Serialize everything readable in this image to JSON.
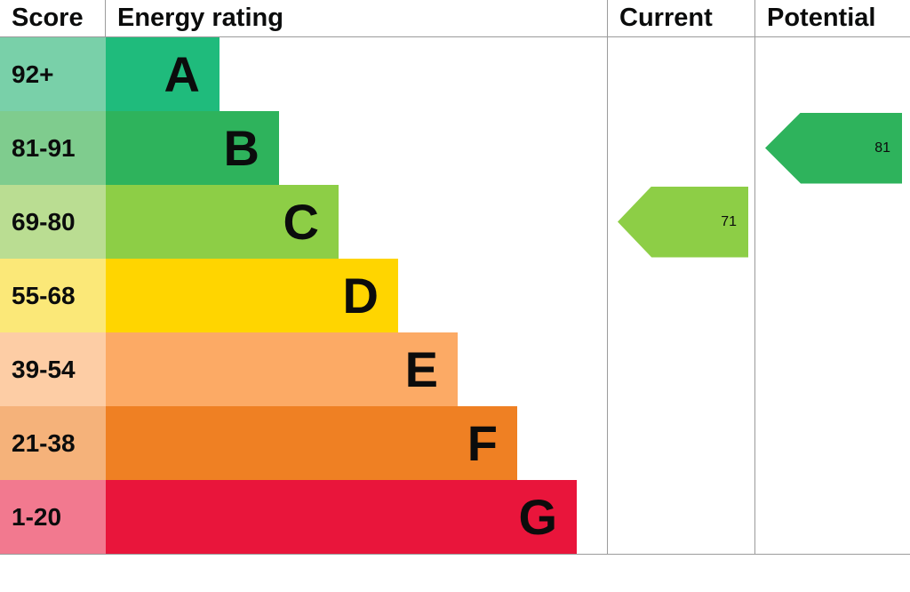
{
  "header": {
    "score": "Score",
    "energy_rating": "Energy rating",
    "current": "Current",
    "potential": "Potential"
  },
  "bands": [
    {
      "letter": "A",
      "score": "92+",
      "bar_color": "#1fbb7c",
      "score_bg": "#79d0a9"
    },
    {
      "letter": "B",
      "score": "81-91",
      "bar_color": "#2eb35c",
      "score_bg": "#7fcc8e"
    },
    {
      "letter": "C",
      "score": "69-80",
      "bar_color": "#8dce46",
      "score_bg": "#badd92"
    },
    {
      "letter": "D",
      "score": "55-68",
      "bar_color": "#ffd500",
      "score_bg": "#fbe878"
    },
    {
      "letter": "E",
      "score": "39-54",
      "bar_color": "#fcaa65",
      "score_bg": "#fdcda5"
    },
    {
      "letter": "F",
      "score": "21-38",
      "bar_color": "#ef8023",
      "score_bg": "#f5b27a"
    },
    {
      "letter": "G",
      "score": "1-20",
      "bar_color": "#e9153b",
      "score_bg": "#f2798f"
    }
  ],
  "current": {
    "value": "71",
    "band": "C",
    "color": "#8dce46"
  },
  "potential": {
    "value": "81",
    "band": "B",
    "color": "#2eb35c"
  },
  "chart_data": {
    "type": "bar",
    "title": "Energy rating",
    "categories": [
      "A",
      "B",
      "C",
      "D",
      "E",
      "F",
      "G"
    ],
    "score_ranges": [
      "92+",
      "81-91",
      "69-80",
      "55-68",
      "39-54",
      "21-38",
      "1-20"
    ],
    "band_colors": [
      "#1fbb7c",
      "#2eb35c",
      "#8dce46",
      "#ffd500",
      "#fcaa65",
      "#ef8023",
      "#e9153b"
    ],
    "columns": [
      "Score",
      "Energy rating",
      "Current",
      "Potential"
    ],
    "current": {
      "value": 71,
      "band": "C"
    },
    "potential": {
      "value": 81,
      "band": "B"
    },
    "legend_position": "none",
    "grid": false
  }
}
